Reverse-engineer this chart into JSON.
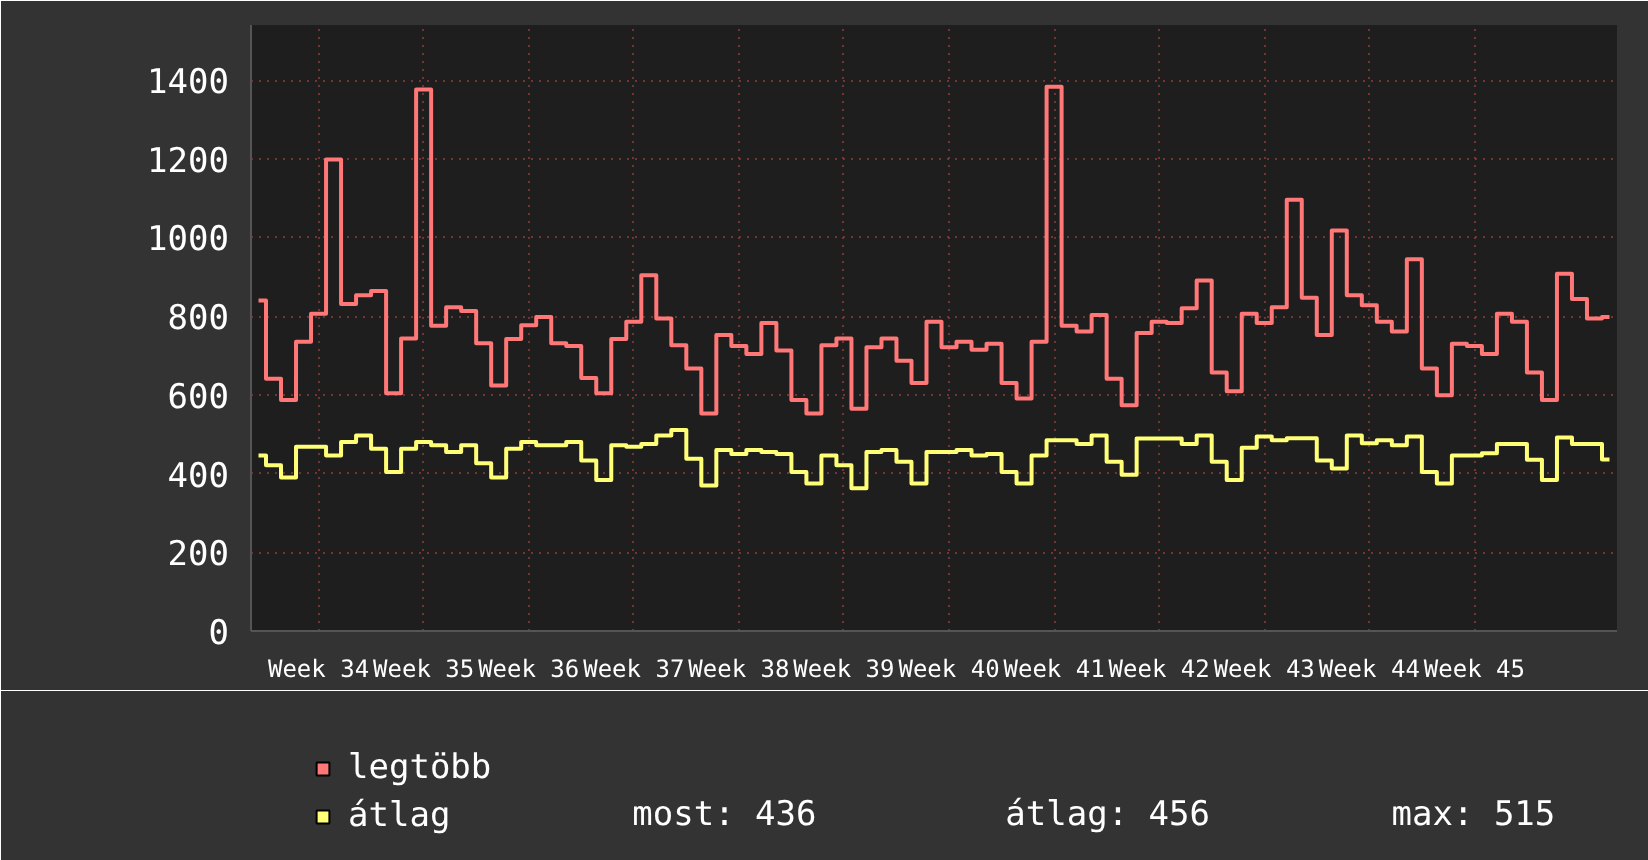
{
  "chart_data": {
    "type": "step",
    "categories": [
      null,
      null,
      null,
      null,
      "Week 34",
      null,
      null,
      null,
      null,
      null,
      null,
      "Week 35",
      null,
      null,
      null,
      null,
      null,
      null,
      "Week 36",
      null,
      null,
      null,
      null,
      null,
      null,
      "Week 37",
      null,
      null,
      null,
      null,
      null,
      null,
      "Week 38",
      null,
      null,
      null,
      null,
      null,
      null,
      "Week 39",
      null,
      null,
      null,
      null,
      null,
      null,
      "Week 40",
      null,
      null,
      null,
      null,
      null,
      null,
      "Week 41",
      null,
      null,
      null,
      null,
      null,
      null,
      "Week 42",
      null,
      null,
      null,
      null,
      null,
      null,
      "Week 43",
      null,
      null,
      null,
      null,
      null,
      null,
      "Week 44",
      null,
      null,
      null,
      null,
      null,
      null,
      "Week 45",
      null,
      null,
      null,
      null,
      null,
      null,
      null,
      null,
      null
    ],
    "series": [
      {
        "name": "legtöbb",
        "color": "#ff7777",
        "values": [
          840,
          641,
          587,
          735,
          806,
          1198,
          831,
          853,
          864,
          604,
          743,
          1376,
          776,
          823,
          813,
          731,
          624,
          742,
          777,
          798,
          731,
          724,
          643,
          604,
          742,
          786,
          904,
          794,
          726,
          667,
          553,
          752,
          724,
          704,
          783,
          713,
          587,
          553,
          726,
          743,
          565,
          721,
          743,
          687,
          630,
          786,
          721,
          735,
          715,
          730,
          630,
          591,
          735,
          1383,
          776,
          761,
          803,
          641,
          574,
          757,
          786,
          783,
          820,
          891,
          657,
          609,
          806,
          783,
          823,
          1096,
          847,
          752,
          1018,
          853,
          828,
          786,
          761,
          945,
          667,
          599,
          730,
          724,
          704,
          806,
          786,
          657,
          587,
          908,
          844,
          794,
          798
        ]
      },
      {
        "name": "átlag",
        "color": "#ffff77",
        "values": [
          446,
          421,
          390,
          468,
          468,
          446,
          480,
          497,
          463,
          404,
          463,
          480,
          472,
          455,
          472,
          426,
          390,
          463,
          480,
          472,
          472,
          480,
          433,
          384,
          472,
          468,
          475,
          497,
          511,
          438,
          370,
          460,
          450,
          460,
          455,
          450,
          404,
          375,
          446,
          421,
          363,
          455,
          460,
          430,
          375,
          455,
          455,
          460,
          446,
          450,
          404,
          375,
          446,
          485,
          485,
          475,
          497,
          430,
          397,
          489,
          489,
          489,
          475,
          497,
          430,
          384,
          466,
          494,
          485,
          490,
          490,
          433,
          413,
          497,
          477,
          485,
          472,
          494,
          404,
          375,
          446,
          446,
          452,
          475,
          475,
          435,
          384,
          492,
          475,
          475,
          436
        ]
      }
    ],
    "ylim": [
      0,
      1540
    ],
    "yticks": [
      0,
      200,
      400,
      600,
      800,
      1000,
      1200,
      1400
    ],
    "grid": true,
    "legend": "bottom",
    "annotations": [
      "most: 436",
      "átlag: 456",
      "max: 515"
    ]
  }
}
